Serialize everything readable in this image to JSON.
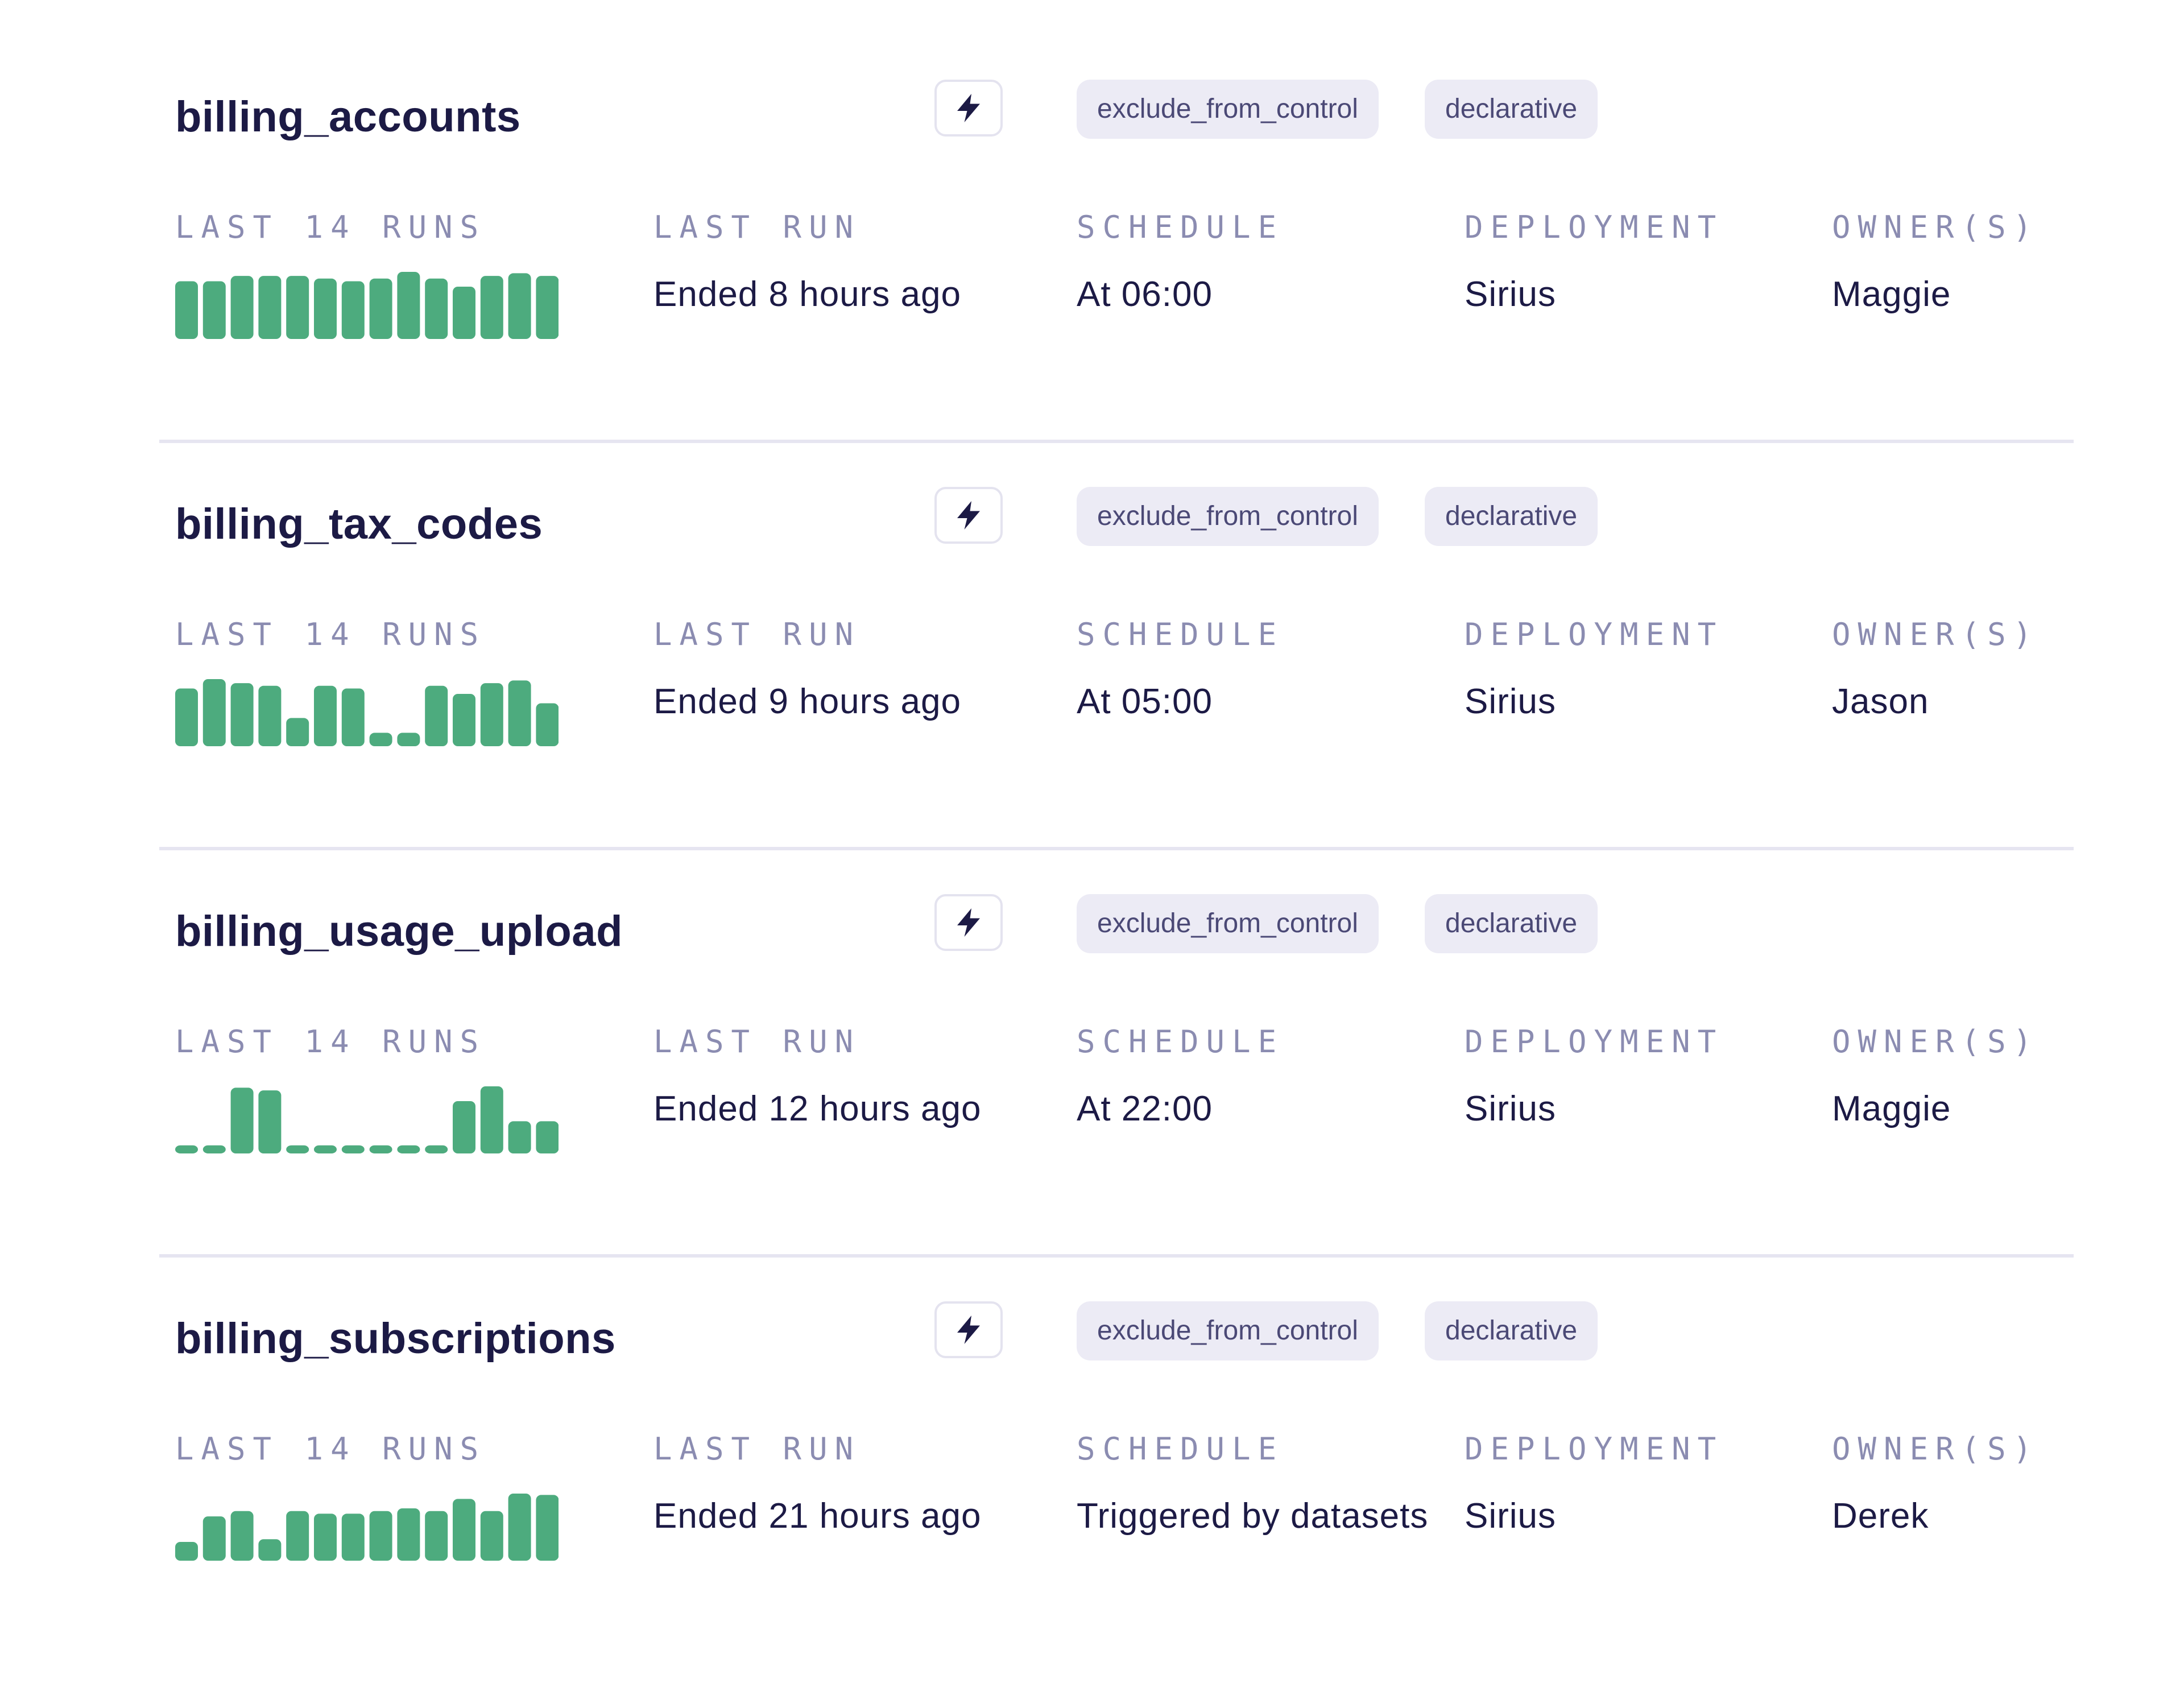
{
  "rows": [
    {
      "name": "billing_accounts",
      "tags": [
        "exclude_from_control",
        "declarative"
      ],
      "labels": {
        "runs": "LAST 14 RUNS",
        "last_run": "LAST RUN",
        "schedule": "SCHEDULE",
        "deployment": "DEPLOYMENT",
        "owners": "OWNER(S)"
      },
      "last_run": "Ended 8 hours ago",
      "schedule": "At 06:00",
      "deployment": "Sirius",
      "owners": "Maggie",
      "run_durations": [
        0.86,
        0.86,
        0.94,
        0.94,
        0.94,
        0.9,
        0.86,
        0.9,
        1.0,
        0.9,
        0.78,
        0.94,
        0.98,
        0.94
      ]
    },
    {
      "name": "billing_tax_codes",
      "tags": [
        "exclude_from_control",
        "declarative"
      ],
      "labels": {
        "runs": "LAST 14 RUNS",
        "last_run": "LAST RUN",
        "schedule": "SCHEDULE",
        "deployment": "DEPLOYMENT",
        "owners": "OWNER(S)"
      },
      "last_run": "Ended 9 hours ago",
      "schedule": "At 05:00",
      "deployment": "Sirius",
      "owners": "Jason",
      "run_durations": [
        0.86,
        1.0,
        0.94,
        0.9,
        0.42,
        0.9,
        0.86,
        0.2,
        0.2,
        0.9,
        0.78,
        0.94,
        0.98,
        0.64
      ]
    },
    {
      "name": "billing_usage_upload",
      "tags": [
        "exclude_from_control",
        "declarative"
      ],
      "labels": {
        "runs": "LAST 14 RUNS",
        "last_run": "LAST RUN",
        "schedule": "SCHEDULE",
        "deployment": "DEPLOYMENT",
        "owners": "OWNER(S)"
      },
      "last_run": "Ended 12 hours ago",
      "schedule": "At 22:00",
      "deployment": "Sirius",
      "owners": "Maggie",
      "run_durations": [
        0.12,
        0.12,
        0.98,
        0.94,
        0.12,
        0.12,
        0.12,
        0.12,
        0.12,
        0.12,
        0.78,
        1.0,
        0.48,
        0.48
      ]
    },
    {
      "name": "billing_subscriptions",
      "tags": [
        "exclude_from_control",
        "declarative"
      ],
      "labels": {
        "runs": "LAST 14 RUNS",
        "last_run": "LAST RUN",
        "schedule": "SCHEDULE",
        "deployment": "DEPLOYMENT",
        "owners": "OWNER(S)"
      },
      "last_run": "Ended 21 hours ago",
      "schedule": "Triggered by datasets",
      "deployment": "Sirius",
      "owners": "Derek",
      "run_durations": [
        0.28,
        0.66,
        0.74,
        0.32,
        0.74,
        0.7,
        0.7,
        0.74,
        0.78,
        0.74,
        0.92,
        0.74,
        1.0,
        0.98
      ]
    }
  ],
  "icons": {
    "trigger": "lightning-bolt-icon"
  },
  "colors": {
    "run_success": "#4dab7e",
    "text": "#1c1a45",
    "label": "#8b8cb1",
    "tag_bg": "#ecebf5",
    "divider": "#e6e5f1"
  }
}
